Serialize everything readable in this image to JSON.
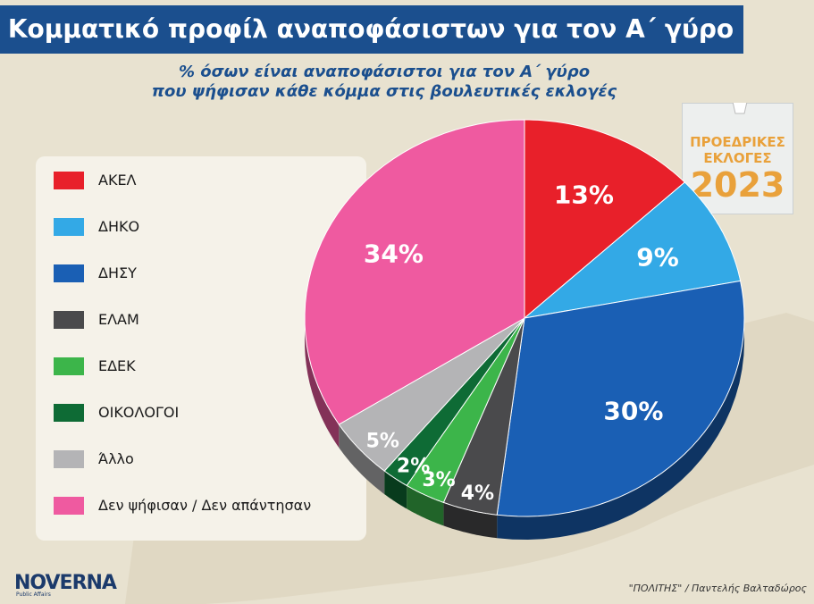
{
  "header": {
    "title": "Κομματικό προφίλ αναποφάσιστων για τον Α΄ γύρο"
  },
  "subtitle": {
    "line1": "% όσων είναι αναποφάσιστοι για τον Α΄ γύρο",
    "line2": "που ψήφισαν κάθε κόμμα στις βουλευτικές εκλογές"
  },
  "badge": {
    "line1": "ΠΡΟΕΔΡΙΚΕΣ",
    "line2": "ΕΚΛΟΓΕΣ",
    "year": "2023"
  },
  "logo": {
    "name": "NOVERNA",
    "tagline": "Public Affairs"
  },
  "credit": "\"ΠΟΛΙΤΗΣ\" / Παντελής Βαλταδώρος",
  "chart_data": {
    "type": "pie",
    "title": "Κομματικό προφίλ αναποφάσιστων για τον Α΄ γύρο",
    "subtitle": "% όσων είναι αναποφάσιστοι για τον Α΄ γύρο που ψήφισαν κάθε κόμμα στις βουλευτικές εκλογές",
    "legend_position": "left",
    "categories": [
      "ΑΚΕΛ",
      "ΔΗΚΟ",
      "ΔΗΣΥ",
      "ΕΛΑΜ",
      "ΕΔΕΚ",
      "ΟΙΚΟΛΟΓΟΙ",
      "Άλλο",
      "Δεν ψήφισαν / Δεν απάντησαν"
    ],
    "values": [
      13,
      9,
      30,
      4,
      3,
      2,
      5,
      34
    ],
    "value_labels": [
      "13%",
      "9%",
      "30%",
      "4%",
      "3%",
      "2%",
      "5%",
      "34%"
    ],
    "colors": [
      "#e8202a",
      "#33a9e6",
      "#1a5fb4",
      "#4a4a4c",
      "#3cb54a",
      "#0e6b35",
      "#b4b4b6",
      "#ef5aa0"
    ]
  }
}
